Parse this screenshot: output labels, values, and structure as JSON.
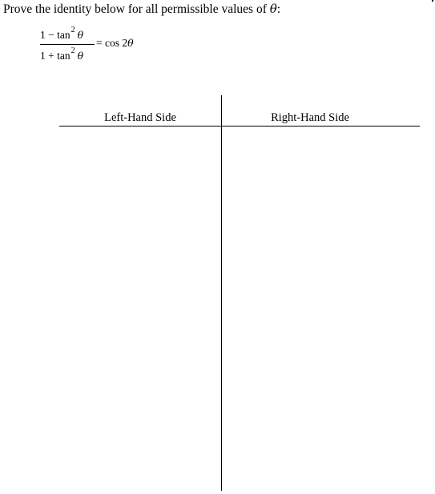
{
  "problem": {
    "prompt_text": "Prove the identity below for all permissible values of",
    "prompt_variable": "θ",
    "prompt_end": ":"
  },
  "identity": {
    "numerator": "1 − tan",
    "denominator": "1 + tan",
    "exponent": "2",
    "variable": "θ",
    "rhs_prefix": "= cos 2",
    "rhs_variable": "θ"
  },
  "t_chart": {
    "left_heading": "Left-Hand Side",
    "right_heading": "Right-Hand Side"
  }
}
